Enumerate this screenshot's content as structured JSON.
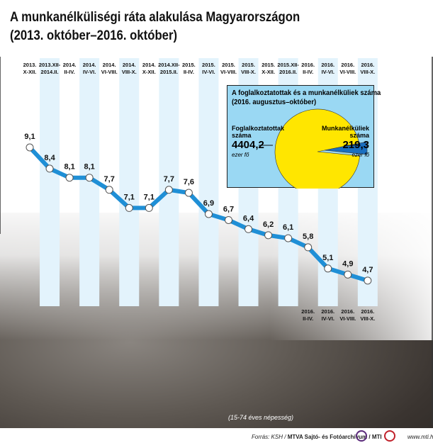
{
  "title_line1": "A munkanélküliségi ráta alakulása Magyarországon",
  "title_line2": "(2013. október–2016. október)",
  "chart_data": [
    {
      "type": "line",
      "categories": [
        [
          "2013.",
          "X-XII."
        ],
        [
          "2013.XII-",
          "2014.II."
        ],
        [
          "2014.",
          "II-IV."
        ],
        [
          "2014.",
          "IV-VI."
        ],
        [
          "2014.",
          "VI-VIII."
        ],
        [
          "2014.",
          "VIII-X."
        ],
        [
          "2014.",
          "X-XII."
        ],
        [
          "2014.XII-",
          "2015.II."
        ],
        [
          "2015.",
          "II-IV."
        ],
        [
          "2015.",
          "IV-VI."
        ],
        [
          "2015.",
          "VI-VIII."
        ],
        [
          "2015.",
          "VIII-X."
        ],
        [
          "2015.",
          "X-XII."
        ],
        [
          "2015.XII-",
          "2016.II."
        ],
        [
          "2016.",
          "II-IV."
        ],
        [
          "2016.",
          "IV-VI."
        ],
        [
          "2016.",
          "VI-VIII."
        ],
        [
          "2016.",
          "VIII-X."
        ]
      ],
      "values": [
        9.1,
        8.4,
        8.1,
        8.1,
        7.7,
        7.1,
        7.1,
        7.7,
        7.6,
        6.9,
        6.7,
        6.4,
        6.2,
        6.1,
        5.8,
        5.1,
        4.9,
        4.7
      ],
      "value_labels": [
        "9,1",
        "8,4",
        "8,1",
        "8,1",
        "7,7",
        "7,1",
        "7,1",
        "7,7",
        "7,6",
        "6,9",
        "6,7",
        "6,4",
        "6,2",
        "6,1",
        "5,8",
        "5,1",
        "4,9",
        "4,7"
      ],
      "note": "(15-74 éves népesség)",
      "colors": {
        "line": "#1f8fd6",
        "stripe": "#e3f3fc",
        "marker_fill": "#ffffff"
      }
    },
    {
      "type": "pie",
      "title_line1": "A foglalkoztatottak és a munkanélküliek száma",
      "title_line2": "(2016. augusztus–október)",
      "slices": [
        {
          "label_line1": "Foglalkoztatottak",
          "label_line2": "száma",
          "value": 4404.2,
          "value_label": "4404,2",
          "unit": "ezer fő",
          "color": "#ffe600"
        },
        {
          "label_line1": "Munkanélküliek",
          "label_line2": "száma",
          "value": 219.3,
          "value_label": "219,3",
          "unit": "ezer fő",
          "color": "#1a6fc0"
        }
      ],
      "background": "#9ad8f3"
    }
  ],
  "footer": {
    "source_prefix": "Forrás: KSH / ",
    "source_bold": "MTVA Sajtó- és Fotóarchívum / MTI",
    "website": "www.mti.hu"
  }
}
